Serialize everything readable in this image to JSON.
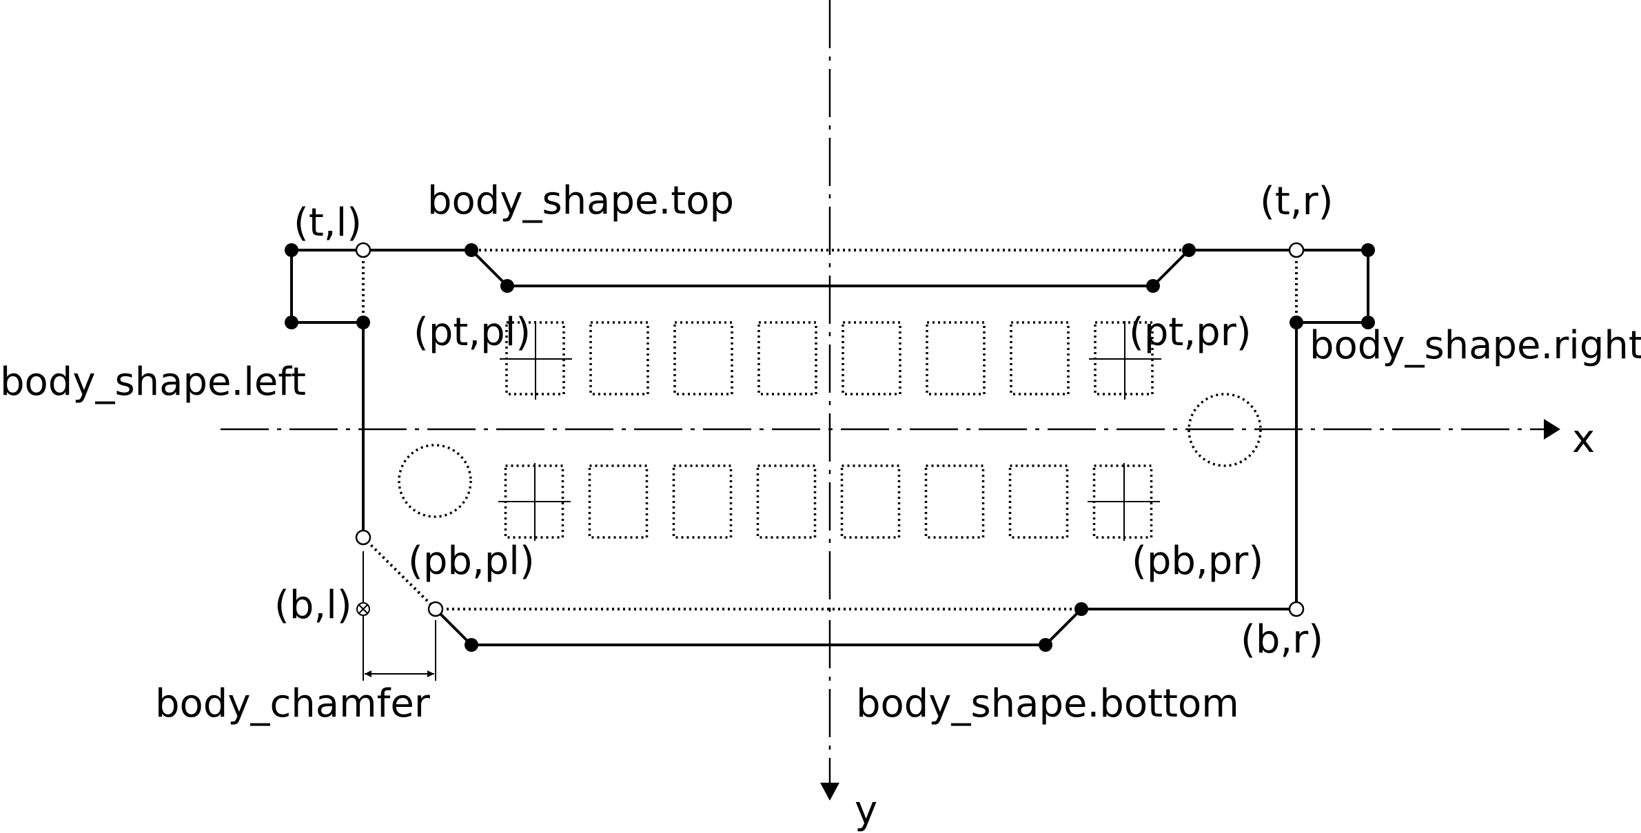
{
  "labels": {
    "tl": "(t,l)",
    "top": "body_shape.top",
    "tr": "(t,r)",
    "ptpl": "(pt,pl)",
    "ptpr": "(pt,pr)",
    "right": "body_shape.right",
    "left": "body_shape.left",
    "x_axis": "x",
    "pbpl": "(pb,pl)",
    "pbpr": "(pb,pr)",
    "bl": "(b,l)",
    "br": "(b,r)",
    "bottom": "body_shape.bottom",
    "chamfer": "body_chamfer",
    "y_axis": "y"
  },
  "pads": {
    "columns": 8,
    "rows": 2
  }
}
